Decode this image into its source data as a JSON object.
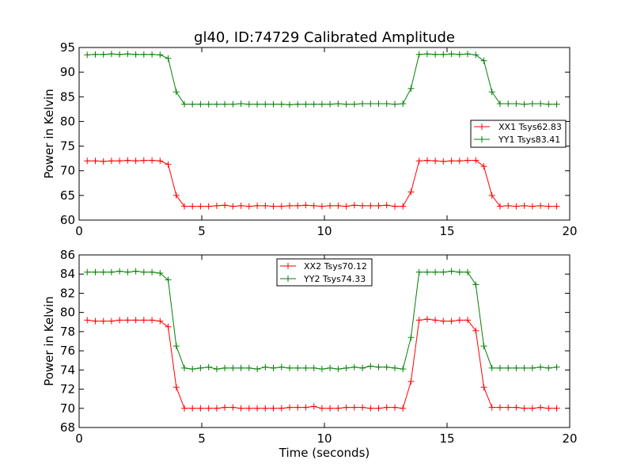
{
  "chart_data": [
    {
      "type": "line",
      "title": "gl40, ID:74729 Calibrated Amplitude",
      "xlabel": "",
      "ylabel": "Power in Kelvin",
      "xlim": [
        0,
        20
      ],
      "ylim": [
        60,
        95
      ],
      "xticks": [
        0,
        5,
        10,
        15,
        20
      ],
      "yticks": [
        60,
        65,
        70,
        75,
        80,
        85,
        90,
        95
      ],
      "grid": false,
      "legend_position": "center-right",
      "x": [
        0.33,
        0.66,
        0.99,
        1.32,
        1.65,
        1.98,
        2.31,
        2.64,
        2.97,
        3.3,
        3.63,
        3.96,
        4.29,
        4.62,
        4.95,
        5.28,
        5.61,
        5.94,
        6.27,
        6.6,
        6.93,
        7.26,
        7.59,
        7.92,
        8.25,
        8.58,
        8.91,
        9.24,
        9.57,
        9.9,
        10.23,
        10.56,
        10.89,
        11.22,
        11.55,
        11.88,
        12.21,
        12.54,
        12.87,
        13.2,
        13.53,
        13.86,
        14.19,
        14.52,
        14.85,
        15.18,
        15.51,
        15.84,
        16.17,
        16.5,
        16.83,
        17.16,
        17.49,
        17.82,
        18.15,
        18.48,
        18.81,
        19.14,
        19.47
      ],
      "series": [
        {
          "name": "XX1 Tsys62.83",
          "color": "#ff0000",
          "values": [
            72.0,
            72.0,
            71.9,
            72.0,
            72.0,
            72.1,
            72.0,
            72.1,
            72.1,
            72.0,
            71.3,
            65.0,
            62.8,
            62.8,
            62.8,
            62.8,
            62.9,
            63.0,
            62.8,
            62.9,
            62.8,
            62.9,
            62.9,
            62.8,
            62.8,
            62.9,
            62.9,
            63.0,
            62.9,
            62.8,
            62.9,
            62.9,
            62.8,
            63.0,
            62.9,
            62.9,
            62.9,
            63.0,
            62.8,
            62.8,
            65.7,
            72.0,
            72.1,
            72.0,
            71.9,
            72.0,
            72.0,
            72.1,
            72.1,
            70.9,
            65.0,
            62.8,
            62.9,
            62.8,
            62.9,
            62.8,
            62.9,
            62.8,
            62.8
          ]
        },
        {
          "name": "YY1 Tsys83.41",
          "color": "#008000",
          "values": [
            93.5,
            93.6,
            93.6,
            93.7,
            93.6,
            93.7,
            93.6,
            93.6,
            93.6,
            93.5,
            92.8,
            86.0,
            83.5,
            83.5,
            83.5,
            83.5,
            83.5,
            83.5,
            83.5,
            83.6,
            83.5,
            83.5,
            83.5,
            83.5,
            83.5,
            83.4,
            83.5,
            83.5,
            83.5,
            83.5,
            83.5,
            83.6,
            83.5,
            83.5,
            83.6,
            83.6,
            83.6,
            83.6,
            83.5,
            83.6,
            86.7,
            93.6,
            93.7,
            93.6,
            93.6,
            93.7,
            93.6,
            93.7,
            93.5,
            92.3,
            86.0,
            83.6,
            83.6,
            83.6,
            83.5,
            83.6,
            83.6,
            83.5,
            83.5
          ]
        }
      ]
    },
    {
      "type": "line",
      "title": "",
      "xlabel": "Time (seconds)",
      "ylabel": "Power in Kelvin",
      "xlim": [
        0,
        20
      ],
      "ylim": [
        68,
        86
      ],
      "xticks": [
        0,
        5,
        10,
        15,
        20
      ],
      "yticks": [
        68,
        70,
        72,
        74,
        76,
        78,
        80,
        82,
        84,
        86
      ],
      "grid": false,
      "legend_position": "upper-center",
      "x": [
        0.33,
        0.66,
        0.99,
        1.32,
        1.65,
        1.98,
        2.31,
        2.64,
        2.97,
        3.3,
        3.63,
        3.96,
        4.29,
        4.62,
        4.95,
        5.28,
        5.61,
        5.94,
        6.27,
        6.6,
        6.93,
        7.26,
        7.59,
        7.92,
        8.25,
        8.58,
        8.91,
        9.24,
        9.57,
        9.9,
        10.23,
        10.56,
        10.89,
        11.22,
        11.55,
        11.88,
        12.21,
        12.54,
        12.87,
        13.2,
        13.53,
        13.86,
        14.19,
        14.52,
        14.85,
        15.18,
        15.51,
        15.84,
        16.17,
        16.5,
        16.83,
        17.16,
        17.49,
        17.82,
        18.15,
        18.48,
        18.81,
        19.14,
        19.47
      ],
      "series": [
        {
          "name": "XX2 Tsys70.12",
          "color": "#ff0000",
          "values": [
            79.2,
            79.1,
            79.1,
            79.1,
            79.2,
            79.2,
            79.2,
            79.2,
            79.2,
            79.1,
            78.5,
            72.2,
            70.0,
            70.0,
            70.0,
            70.0,
            70.0,
            70.1,
            70.1,
            70.0,
            70.0,
            70.0,
            70.0,
            70.0,
            70.0,
            70.1,
            70.1,
            70.1,
            70.2,
            70.0,
            70.0,
            70.0,
            70.1,
            70.1,
            70.1,
            70.0,
            70.0,
            70.1,
            70.1,
            70.0,
            72.8,
            79.2,
            79.3,
            79.2,
            79.1,
            79.1,
            79.2,
            79.2,
            78.1,
            72.2,
            70.1,
            70.1,
            70.1,
            70.1,
            70.0,
            70.0,
            70.1,
            70.0,
            70.0
          ]
        },
        {
          "name": "YY2 Tsys74.33",
          "color": "#008000",
          "values": [
            84.2,
            84.2,
            84.2,
            84.2,
            84.3,
            84.2,
            84.3,
            84.2,
            84.2,
            84.1,
            83.4,
            76.5,
            74.2,
            74.1,
            74.2,
            74.3,
            74.1,
            74.2,
            74.2,
            74.2,
            74.2,
            74.1,
            74.3,
            74.2,
            74.3,
            74.2,
            74.2,
            74.2,
            74.2,
            74.1,
            74.2,
            74.1,
            74.2,
            74.3,
            74.2,
            74.4,
            74.3,
            74.3,
            74.2,
            74.1,
            77.4,
            84.2,
            84.2,
            84.2,
            84.2,
            84.3,
            84.2,
            84.2,
            82.9,
            76.5,
            74.2,
            74.2,
            74.2,
            74.2,
            74.2,
            74.2,
            74.3,
            74.2,
            74.3
          ]
        }
      ]
    }
  ]
}
